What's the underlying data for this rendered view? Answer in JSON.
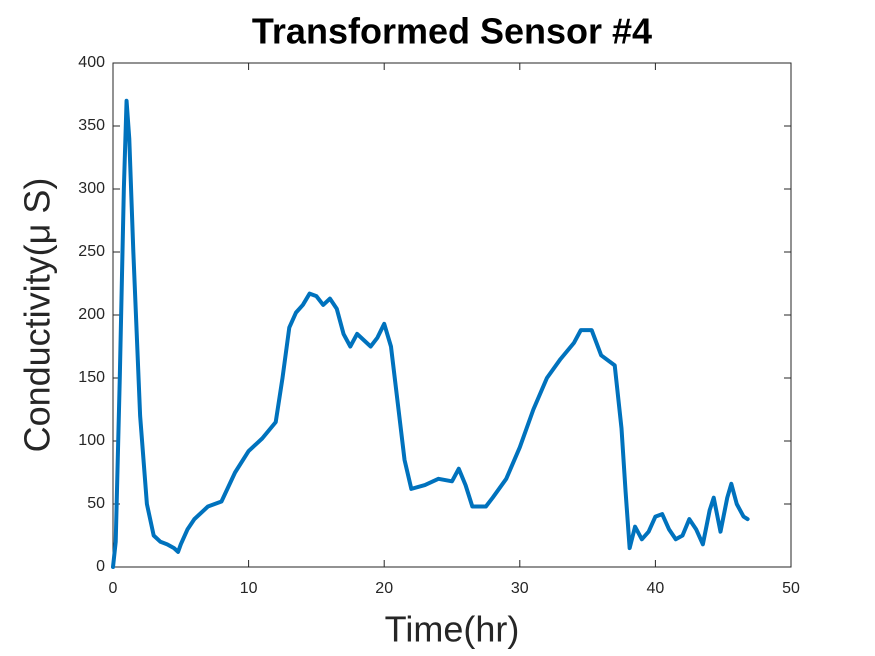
{
  "chart_data": {
    "type": "line",
    "title": "Transformed Sensor #4",
    "x_label": "Time(hr)",
    "y_label": "Conductivity(μ S)",
    "x": [
      0,
      0.2,
      0.5,
      0.8,
      1.0,
      1.2,
      1.5,
      2,
      2.5,
      3,
      3.5,
      4,
      4.5,
      4.8,
      5,
      5.5,
      6,
      7,
      8,
      9,
      10,
      11,
      12,
      12.5,
      13,
      13.5,
      14,
      14.5,
      15,
      15.5,
      16,
      16.5,
      17,
      17.5,
      18,
      19,
      19.5,
      20,
      20.5,
      21,
      21.5,
      22,
      23,
      24,
      25,
      25.5,
      26,
      26.5,
      27.5,
      28,
      29,
      30,
      31,
      32,
      33,
      34,
      34.5,
      35.3,
      36,
      37,
      37.5,
      37.8,
      38.1,
      38.5,
      39,
      39.5,
      40,
      40.5,
      41,
      41.5,
      42,
      42.5,
      43,
      43.5,
      44,
      44.3,
      44.8,
      45.3,
      45.6,
      46,
      46.5,
      46.8
    ],
    "values": [
      0,
      20,
      150,
      300,
      370,
      340,
      250,
      120,
      50,
      25,
      20,
      18,
      15,
      12,
      18,
      30,
      38,
      48,
      52,
      75,
      92,
      102,
      115,
      150,
      190,
      202,
      208,
      217,
      215,
      208,
      213,
      205,
      185,
      175,
      185,
      175,
      182,
      193,
      175,
      130,
      85,
      62,
      65,
      70,
      68,
      78,
      65,
      48,
      48,
      55,
      70,
      95,
      125,
      150,
      165,
      178,
      188,
      188,
      168,
      160,
      110,
      60,
      15,
      32,
      22,
      28,
      40,
      42,
      30,
      22,
      25,
      38,
      30,
      18,
      45,
      55,
      28,
      55,
      66,
      50,
      40,
      38
    ],
    "color": "#0072bd",
    "xlim": [
      0,
      50
    ],
    "xticks": [
      0,
      10,
      20,
      30,
      40,
      50
    ],
    "ylim": [
      0,
      400
    ],
    "yticks": [
      0,
      50,
      100,
      150,
      200,
      250,
      300,
      350,
      400
    ],
    "grid": false
  }
}
